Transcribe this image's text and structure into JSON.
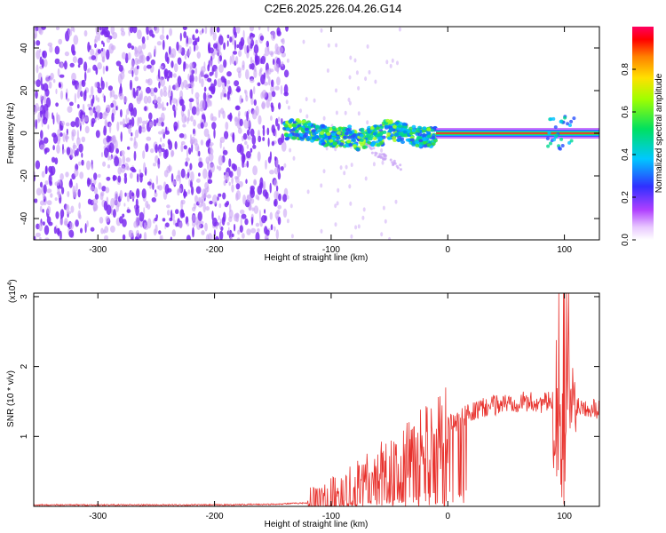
{
  "title": "C2E6.2025.226.04.26.G14",
  "colors": {
    "snr_line": "#e8322d",
    "track_core": "#ff2a2a",
    "noise_dark": "#7b2cf0",
    "noise_light": "#c9a4f5"
  },
  "chart_data": [
    {
      "type": "heatmap",
      "xlabel": "Height of straight line (km)",
      "ylabel": "Frequency (Hz)",
      "xlim": [
        -355,
        130
      ],
      "ylim": [
        -50,
        50
      ],
      "xticks": [
        -300,
        -200,
        -100,
        0,
        100
      ],
      "yticks": [
        -40,
        -20,
        0,
        20,
        40
      ],
      "colorbar": {
        "label": "Normalized spectral amplitude",
        "range": [
          0,
          1
        ],
        "ticks": [
          "0.0",
          "0.2",
          "0.4",
          "0.6",
          "0.8"
        ],
        "colormap": "rainbow"
      },
      "regions": [
        {
          "x": [
            -355,
            -138
          ],
          "description_level": 0.15,
          "freq": [
            -50,
            50
          ]
        },
        {
          "x": [
            -140,
            -10
          ],
          "level": 0.35,
          "freq_center": 0
        },
        {
          "x": [
            -10,
            130
          ],
          "level": 1.0,
          "freq_center": 0
        }
      ]
    },
    {
      "type": "line",
      "xlabel": "Height of straight line (km)",
      "ylabel": "SNR (10 * v/v)",
      "ylabel_multiplier": "(x10",
      "ylabel_exponent": "4",
      "ylabel_close": ")",
      "xlim": [
        -355,
        130
      ],
      "ylim": [
        0,
        3.05
      ],
      "xticks": [
        -300,
        -200,
        -100,
        0,
        100
      ],
      "yticks": [
        1,
        2,
        3
      ],
      "series": [
        {
          "x": [
            -355,
            -300,
            -250,
            -200,
            -150,
            -120,
            -100,
            -80,
            -60,
            -40,
            -20,
            0,
            20,
            40,
            60,
            80,
            95,
            100,
            105,
            110,
            130
          ],
          "y": [
            0.02,
            0.02,
            0.02,
            0.02,
            0.03,
            0.05,
            0.12,
            0.3,
            0.5,
            0.7,
            0.95,
            1.15,
            1.35,
            1.45,
            1.5,
            1.48,
            1.5,
            1.0,
            1.5,
            1.45,
            1.4
          ]
        }
      ]
    }
  ]
}
